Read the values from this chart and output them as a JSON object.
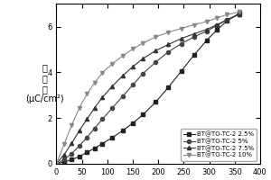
{
  "title": "",
  "xlabel": "",
  "ylabel_lines": [
    "电",
    "位",
    "移",
    "(μC/cm²)"
  ],
  "xlim": [
    0,
    400
  ],
  "ylim": [
    0,
    7.0
  ],
  "xticks": [
    0,
    50,
    100,
    150,
    200,
    250,
    300,
    350,
    400
  ],
  "yticks": [
    0,
    2,
    4,
    6
  ],
  "series": [
    {
      "label": "BT@TO-TC-2 2.5%",
      "marker": "s",
      "color": "#222222",
      "x": [
        0,
        15,
        30,
        45,
        60,
        75,
        90,
        110,
        130,
        150,
        170,
        195,
        220,
        245,
        270,
        295,
        315,
        335,
        360
      ],
      "y": [
        0,
        0.08,
        0.18,
        0.32,
        0.5,
        0.68,
        0.88,
        1.15,
        1.45,
        1.78,
        2.15,
        2.7,
        3.35,
        4.05,
        4.75,
        5.4,
        5.85,
        6.25,
        6.6
      ]
    },
    {
      "label": "BT@TO-TC-2 5%",
      "marker": "o",
      "color": "#444444",
      "x": [
        0,
        15,
        30,
        45,
        60,
        75,
        90,
        110,
        130,
        150,
        170,
        195,
        220,
        245,
        270,
        295,
        315,
        335,
        360
      ],
      "y": [
        0,
        0.18,
        0.45,
        0.78,
        1.15,
        1.55,
        1.95,
        2.45,
        2.95,
        3.45,
        3.95,
        4.45,
        4.9,
        5.25,
        5.55,
        5.8,
        6.05,
        6.3,
        6.55
      ]
    },
    {
      "label": "BT@TO-TC-2 7.5%",
      "marker": "^",
      "color": "#333333",
      "x": [
        0,
        15,
        30,
        45,
        60,
        75,
        90,
        110,
        130,
        150,
        170,
        195,
        220,
        245,
        270,
        295,
        315,
        335,
        360
      ],
      "y": [
        0,
        0.4,
        0.9,
        1.45,
        1.95,
        2.45,
        2.9,
        3.4,
        3.85,
        4.25,
        4.6,
        4.95,
        5.22,
        5.48,
        5.68,
        5.88,
        6.08,
        6.3,
        6.55
      ]
    },
    {
      "label": "BT@TO-TC-2 10%",
      "marker": "v",
      "color": "#888888",
      "x": [
        0,
        15,
        30,
        45,
        60,
        75,
        90,
        110,
        130,
        150,
        170,
        195,
        220,
        245,
        270,
        295,
        315,
        335,
        360
      ],
      "y": [
        0,
        0.85,
        1.7,
        2.45,
        3.05,
        3.55,
        3.98,
        4.38,
        4.72,
        5.02,
        5.28,
        5.55,
        5.75,
        5.92,
        6.08,
        6.22,
        6.38,
        6.52,
        6.65
      ]
    }
  ],
  "legend_fontsize": 5.0,
  "tick_fontsize": 6,
  "label_fontsize": 7,
  "marker_size": 3,
  "line_width": 0.8
}
